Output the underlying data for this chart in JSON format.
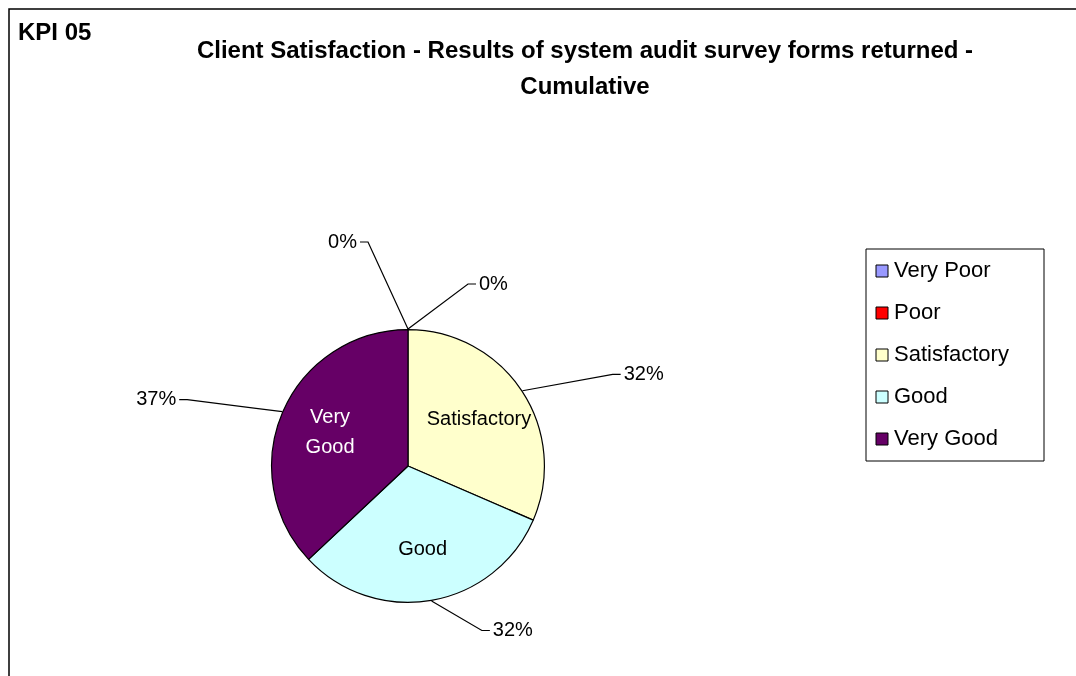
{
  "chart_data": {
    "type": "pie",
    "title": "Client Satisfaction - Results of system audit survey forms returned - Cumulative",
    "categories": [
      "Very Poor",
      "Poor",
      "Satisfactory",
      "Good",
      "Very Good"
    ],
    "values": [
      0,
      0,
      31.5,
      31.5,
      37
    ],
    "value_labels": [
      "0%",
      "0%",
      "32%",
      "32%",
      "37%"
    ],
    "colors": [
      "#9999ff",
      "#ff0000",
      "#ffffcc",
      "#ccffff",
      "#660066"
    ],
    "legend": "right",
    "annotations": [
      "KPI 05"
    ]
  }
}
